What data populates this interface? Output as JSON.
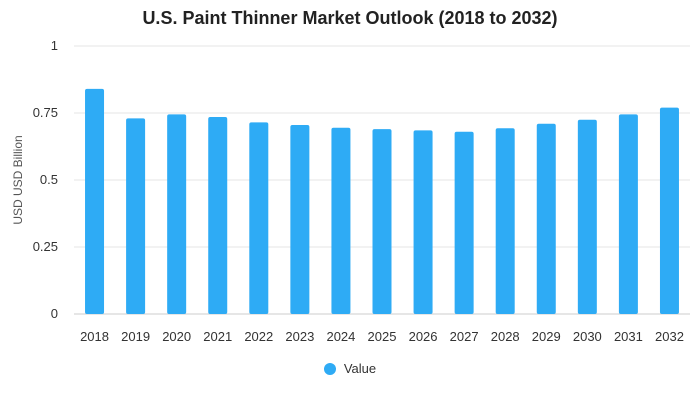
{
  "chart_data": {
    "type": "bar",
    "title": "U.S. Paint Thinner Market Outlook (2018 to 2032)",
    "xlabel": "",
    "ylabel": "USD USD Billion",
    "categories": [
      "2018",
      "2019",
      "2020",
      "2021",
      "2022",
      "2023",
      "2024",
      "2025",
      "2026",
      "2027",
      "2028",
      "2029",
      "2030",
      "2031",
      "2032"
    ],
    "series": [
      {
        "name": "Value",
        "values": [
          0.84,
          0.73,
          0.745,
          0.735,
          0.715,
          0.705,
          0.695,
          0.69,
          0.685,
          0.68,
          0.693,
          0.71,
          0.725,
          0.745,
          0.77
        ]
      }
    ],
    "ylim": [
      0,
      1
    ],
    "yticks": [
      {
        "value": 0,
        "label": "0"
      },
      {
        "value": 0.25,
        "label": "0.25"
      },
      {
        "value": 0.5,
        "label": "0.5"
      },
      {
        "value": 0.75,
        "label": "0.75"
      },
      {
        "value": 1,
        "label": "1"
      }
    ],
    "grid": true,
    "legend_position": "bottom",
    "colors": {
      "bar": "#2eabf5",
      "grid": "#e6e6e6",
      "axis": "#cccccc",
      "text": "#333333"
    }
  }
}
